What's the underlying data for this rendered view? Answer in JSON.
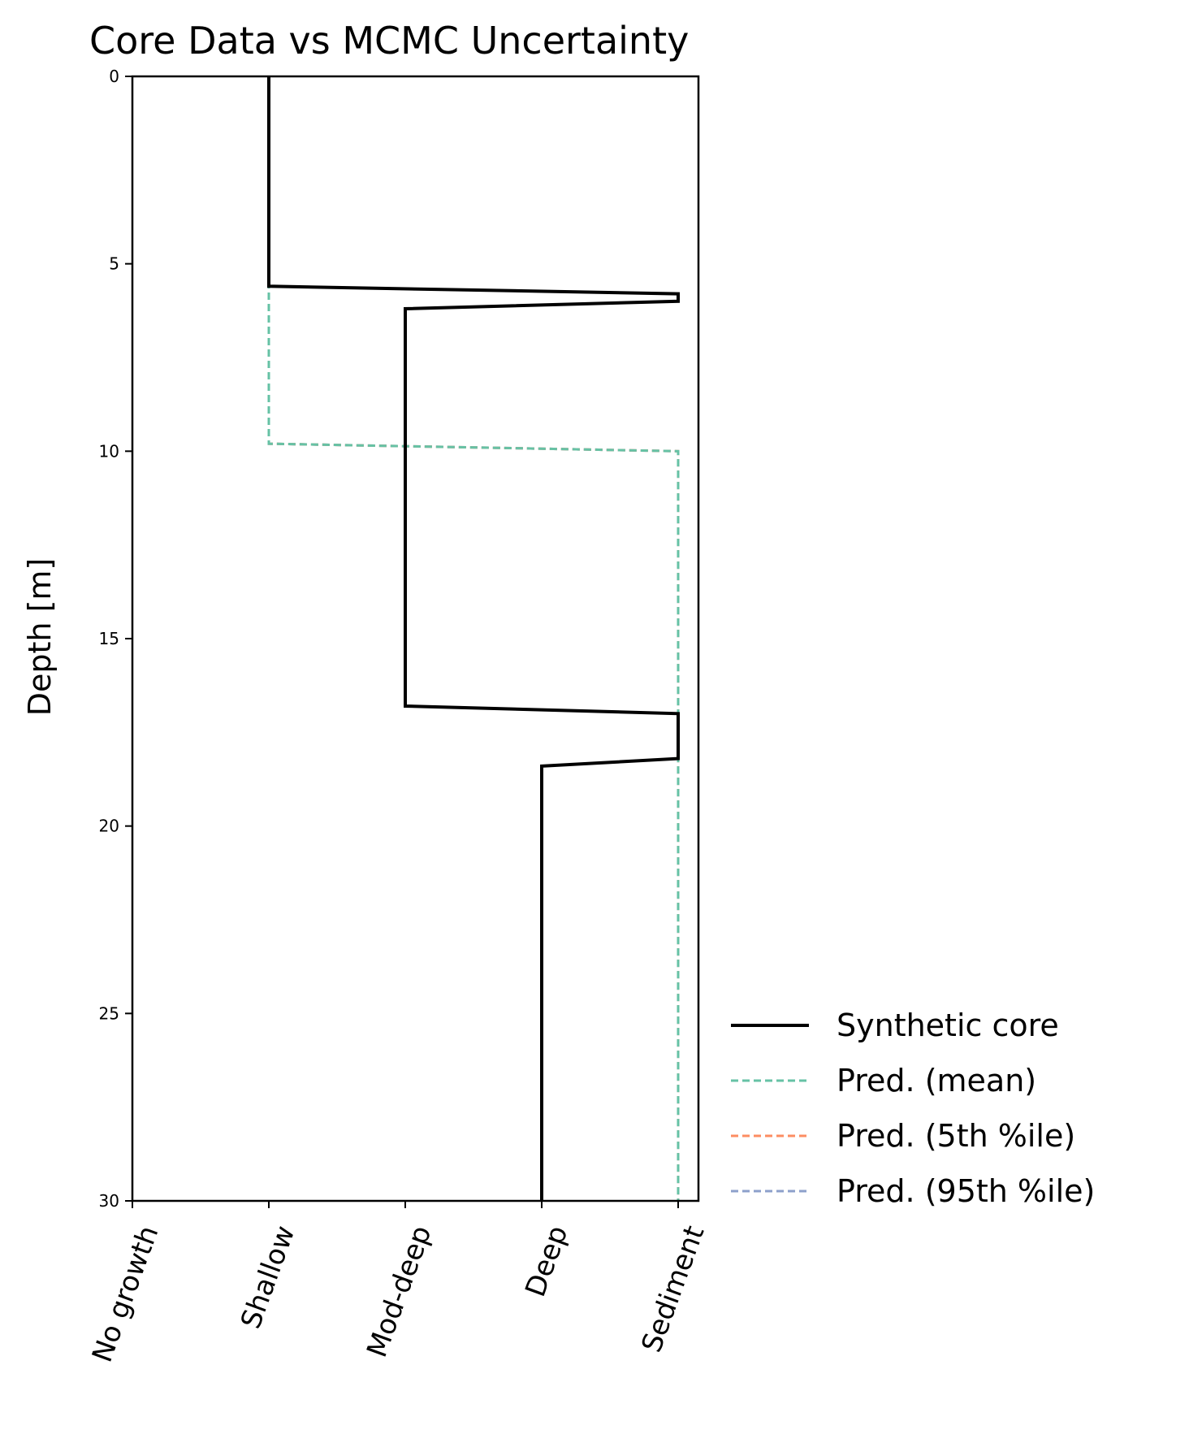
{
  "chart_data": {
    "type": "line",
    "title": "Core Data vs MCMC Uncertainty",
    "xlabel": "",
    "ylabel": "Depth [m]",
    "ylim": [
      0,
      30
    ],
    "y_inverted": true,
    "y_ticks": [
      0,
      5,
      10,
      15,
      20,
      25,
      30
    ],
    "categories": [
      "No growth",
      "Shallow",
      "Mod-deep",
      "Deep",
      "Sediment"
    ],
    "grid": false,
    "legend_position": "lower-right-outside",
    "series": [
      {
        "name": "Synthetic core",
        "color": "#000000",
        "style": "solid",
        "points": [
          {
            "facies": 1,
            "depth": 0
          },
          {
            "facies": 1,
            "depth": 5.6
          },
          {
            "facies": 4,
            "depth": 5.8
          },
          {
            "facies": 4,
            "depth": 6.0
          },
          {
            "facies": 2,
            "depth": 6.2
          },
          {
            "facies": 2,
            "depth": 16.8
          },
          {
            "facies": 4,
            "depth": 17.0
          },
          {
            "facies": 4,
            "depth": 18.2
          },
          {
            "facies": 3,
            "depth": 18.4
          },
          {
            "facies": 3,
            "depth": 30
          }
        ]
      },
      {
        "name": "Pred. (mean)",
        "color": "#66c2a5",
        "style": "dashed",
        "points": [
          {
            "facies": 1,
            "depth": 0
          },
          {
            "facies": 1,
            "depth": 9.8
          },
          {
            "facies": 4,
            "depth": 10.0
          },
          {
            "facies": 4,
            "depth": 30
          }
        ]
      },
      {
        "name": "Pred. (5th %ile)",
        "color": "#fc8d62",
        "style": "dashed",
        "points": [
          {
            "facies": 1,
            "depth": 0
          },
          {
            "facies": 1,
            "depth": 9.8
          },
          {
            "facies": 4,
            "depth": 10.0
          },
          {
            "facies": 4,
            "depth": 30
          }
        ]
      },
      {
        "name": "Pred. (95th %ile)",
        "color": "#8da0cb",
        "style": "dashed",
        "points": [
          {
            "facies": 1,
            "depth": 0
          },
          {
            "facies": 1,
            "depth": 9.8
          },
          {
            "facies": 4,
            "depth": 10.0
          },
          {
            "facies": 4,
            "depth": 30
          }
        ]
      }
    ]
  }
}
